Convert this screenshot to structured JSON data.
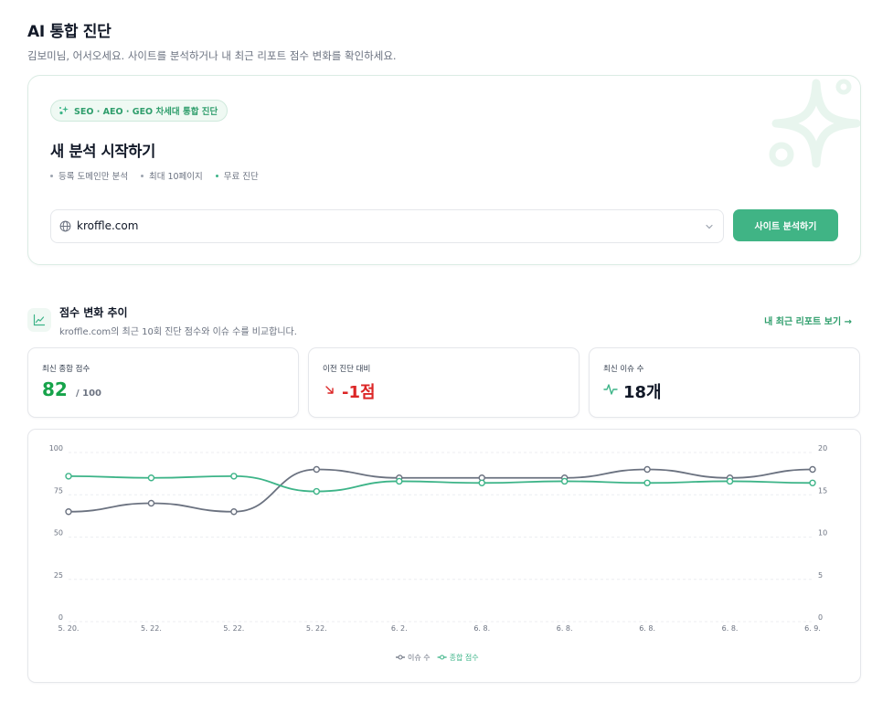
{
  "header": {
    "title": "AI 통합 진단",
    "subtitle": "김보미님, 어서오세요. 사이트를 분석하거나 내 최근 리포트 점수 변화를 확인하세요."
  },
  "hero": {
    "badge": "SEO · AEO · GEO 차세대 통합 진단",
    "heading": "새 분석 시작하기",
    "features": [
      "등록 도메인만 분석",
      "최대 10페이지",
      "무료 진단"
    ],
    "domain_value": "kroffle.com",
    "analyze_button": "사이트 분석하기",
    "accent_color": "#40b485"
  },
  "trend": {
    "title": "점수 변화 추이",
    "description": "kroffle.com의 최근 10회 진단 점수와 이슈 수를 비교합니다.",
    "report_link": "내 최근 리포트 보기 →"
  },
  "stats": {
    "score_label": "최신 종합 점수",
    "score_value": "82",
    "score_suffix": "/ 100",
    "change_label": "이전 진단 대비",
    "change_value": "-1점",
    "issues_label": "최신 이슈 수",
    "issues_value": "18개"
  },
  "chart_data": {
    "type": "line",
    "categories": [
      "5. 20.",
      "5. 22.",
      "5. 22.",
      "5. 22.",
      "6. 2.",
      "6. 8.",
      "6. 8.",
      "6. 8.",
      "6. 8.",
      "6. 9."
    ],
    "series": [
      {
        "name": "이슈 수",
        "axis": "right",
        "color": "#6b7280",
        "values": [
          13,
          14,
          13,
          18,
          17,
          17,
          17,
          18,
          17,
          18
        ]
      },
      {
        "name": "종합 점수",
        "axis": "left",
        "color": "#3db488",
        "values": [
          86,
          85,
          86,
          77,
          83,
          82,
          83,
          82,
          83,
          82
        ]
      }
    ],
    "y_left": {
      "min": 0,
      "max": 100,
      "ticks": [
        0,
        25,
        50,
        75,
        100
      ]
    },
    "y_right": {
      "min": 0,
      "max": 20,
      "ticks": [
        0,
        5,
        10,
        15,
        20
      ]
    },
    "grid": "horizontal-dashed",
    "legend_position": "bottom-center"
  }
}
